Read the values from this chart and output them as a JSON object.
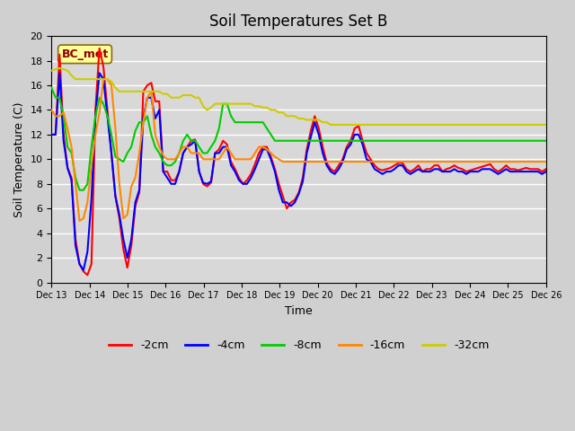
{
  "title": "Soil Temperatures Set B",
  "xlabel": "Time",
  "ylabel": "Soil Temperature (C)",
  "annotation": "BC_met",
  "ylim": [
    0,
    20
  ],
  "series_labels": [
    "-2cm",
    "-4cm",
    "-8cm",
    "-16cm",
    "-32cm"
  ],
  "series_colors": [
    "#ff0000",
    "#0000ff",
    "#00cc00",
    "#ff8800",
    "#cccc00"
  ],
  "background_color": "#e8e8e8",
  "plot_bg_color": "#d8d8d8",
  "x_labels": [
    "Dec 13",
    "Dec 14",
    "Dec 15",
    "Dec 16",
    "Dec 17",
    "Dec 18",
    "Dec 19",
    "Dec 20",
    "Dec 21",
    "Dec 22",
    "Dec 23",
    "Dec 24",
    "Dec 25",
    "Dec 26"
  ],
  "t_2cm": [
    12.0,
    12.0,
    18.5,
    12.0,
    9.3,
    8.5,
    3.5,
    1.5,
    0.9,
    0.6,
    1.5,
    14.0,
    19.0,
    17.5,
    14.0,
    10.5,
    7.0,
    5.2,
    2.7,
    1.2,
    3.0,
    6.2,
    7.3,
    15.5,
    16.0,
    16.2,
    14.7,
    14.7,
    9.0,
    9.0,
    8.3,
    8.3,
    9.0,
    10.5,
    11.0,
    11.5,
    11.6,
    9.0,
    8.0,
    7.8,
    8.1,
    10.5,
    10.8,
    11.5,
    11.2,
    9.8,
    9.2,
    8.5,
    8.0,
    8.3,
    8.8,
    9.6,
    10.5,
    11.0,
    11.0,
    10.2,
    9.2,
    8.0,
    7.0,
    6.0,
    6.5,
    6.7,
    7.3,
    8.5,
    10.8,
    12.3,
    13.5,
    12.5,
    11.0,
    9.7,
    9.2,
    9.0,
    9.5,
    10.0,
    11.0,
    11.5,
    12.5,
    12.7,
    11.5,
    10.5,
    10.0,
    9.5,
    9.2,
    9.1,
    9.2,
    9.3,
    9.5,
    9.7,
    9.7,
    9.2,
    9.0,
    9.2,
    9.5,
    9.0,
    9.2,
    9.2,
    9.5,
    9.5,
    9.0,
    9.2,
    9.3,
    9.5,
    9.3,
    9.2,
    9.0,
    9.1,
    9.2,
    9.3,
    9.4,
    9.5,
    9.6,
    9.2,
    9.0,
    9.2,
    9.5,
    9.2,
    9.2,
    9.1,
    9.2,
    9.3,
    9.2,
    9.2,
    9.2,
    9.0,
    9.2
  ],
  "t_4cm": [
    12.0,
    12.0,
    17.0,
    11.5,
    9.3,
    8.3,
    3.0,
    1.5,
    1.0,
    2.5,
    6.8,
    13.5,
    17.0,
    16.5,
    13.5,
    10.5,
    7.0,
    5.5,
    3.5,
    2.0,
    3.5,
    6.5,
    7.5,
    13.3,
    15.0,
    15.0,
    13.3,
    14.0,
    9.0,
    8.5,
    8.0,
    8.0,
    9.0,
    10.5,
    11.0,
    11.2,
    11.5,
    9.0,
    8.1,
    8.0,
    8.2,
    10.5,
    10.5,
    11.0,
    11.0,
    9.5,
    9.0,
    8.3,
    8.0,
    8.0,
    8.5,
    9.2,
    10.0,
    10.8,
    10.8,
    10.0,
    9.0,
    7.5,
    6.5,
    6.5,
    6.2,
    6.5,
    7.2,
    8.2,
    10.5,
    11.8,
    13.0,
    12.0,
    10.5,
    9.5,
    9.0,
    8.8,
    9.2,
    9.8,
    10.8,
    11.2,
    12.0,
    12.0,
    11.2,
    10.0,
    9.8,
    9.2,
    9.0,
    8.8,
    9.0,
    9.0,
    9.2,
    9.5,
    9.5,
    9.0,
    8.8,
    9.0,
    9.2,
    9.0,
    9.0,
    9.0,
    9.2,
    9.2,
    9.0,
    9.0,
    9.0,
    9.2,
    9.0,
    9.0,
    8.8,
    9.0,
    9.0,
    9.0,
    9.2,
    9.2,
    9.2,
    9.0,
    8.8,
    9.0,
    9.2,
    9.0,
    9.0,
    9.0,
    9.0,
    9.0,
    9.0,
    9.0,
    9.0,
    8.8,
    9.0
  ],
  "t_8cm": [
    15.8,
    15.0,
    15.0,
    13.5,
    11.0,
    10.5,
    8.5,
    7.5,
    7.5,
    8.0,
    11.0,
    13.5,
    15.0,
    14.5,
    13.5,
    12.0,
    10.2,
    10.0,
    9.8,
    10.5,
    11.0,
    12.3,
    13.0,
    13.0,
    13.5,
    12.0,
    11.0,
    10.5,
    9.8,
    9.5,
    9.5,
    9.8,
    10.5,
    11.5,
    12.0,
    11.5,
    11.5,
    11.0,
    10.5,
    10.5,
    11.0,
    11.5,
    12.5,
    14.5,
    14.5,
    13.5,
    13.0,
    13.0,
    13.0,
    13.0,
    13.0,
    13.0,
    13.0,
    13.0,
    12.5,
    12.0,
    11.5,
    11.5,
    11.5,
    11.5,
    11.5,
    11.5,
    11.5,
    11.5,
    11.5,
    11.5,
    11.5,
    11.5,
    11.5,
    11.5,
    11.5,
    11.5,
    11.5,
    11.5,
    11.5,
    11.5,
    11.5,
    11.5,
    11.5,
    11.5,
    11.5,
    11.5,
    11.5,
    11.5,
    11.5,
    11.5,
    11.5,
    11.5,
    11.5,
    11.5,
    11.5,
    11.5,
    11.5,
    11.5,
    11.5,
    11.5,
    11.5,
    11.5,
    11.5,
    11.5,
    11.5,
    11.5,
    11.5,
    11.5,
    11.5,
    11.5,
    11.5,
    11.5,
    11.5,
    11.5,
    11.5,
    11.5,
    11.5,
    11.5,
    11.5,
    11.5,
    11.5,
    11.5,
    11.5,
    11.5,
    11.5,
    11.5,
    11.5,
    11.5,
    11.5
  ],
  "t_16cm": [
    14.0,
    13.5,
    13.5,
    13.8,
    12.5,
    11.0,
    8.0,
    5.0,
    5.2,
    6.5,
    9.5,
    12.0,
    13.8,
    16.5,
    16.5,
    16.0,
    12.5,
    8.0,
    5.2,
    5.5,
    7.8,
    8.5,
    10.5,
    13.0,
    15.0,
    15.5,
    12.0,
    11.0,
    10.3,
    10.0,
    10.0,
    10.0,
    10.5,
    11.0,
    11.0,
    10.5,
    10.5,
    10.5,
    10.0,
    10.0,
    10.0,
    10.0,
    10.0,
    10.5,
    11.0,
    10.5,
    10.0,
    10.0,
    10.0,
    10.0,
    10.0,
    10.5,
    11.0,
    11.0,
    10.8,
    10.5,
    10.2,
    10.0,
    9.8,
    9.8,
    9.8,
    9.8,
    9.8,
    9.8,
    9.8,
    9.8,
    9.8,
    9.8,
    9.8,
    9.8,
    9.8,
    9.8,
    9.8,
    9.8,
    9.8,
    9.8,
    9.8,
    9.8,
    9.8,
    9.8,
    9.8,
    9.8,
    9.8,
    9.8,
    9.8,
    9.8,
    9.8,
    9.8,
    9.8,
    9.8,
    9.8,
    9.8,
    9.8,
    9.8,
    9.8,
    9.8,
    9.8,
    9.8,
    9.8,
    9.8,
    9.8,
    9.8,
    9.8,
    9.8,
    9.8,
    9.8,
    9.8,
    9.8,
    9.8,
    9.8,
    9.8,
    9.8,
    9.8,
    9.8,
    9.8,
    9.8,
    9.8,
    9.8,
    9.8,
    9.8,
    9.8,
    9.8,
    9.8,
    9.8,
    9.8
  ],
  "t_32cm": [
    17.2,
    17.3,
    17.4,
    17.3,
    17.2,
    16.8,
    16.5,
    16.5,
    16.5,
    16.5,
    16.5,
    16.5,
    16.5,
    16.5,
    16.5,
    16.3,
    15.8,
    15.5,
    15.5,
    15.5,
    15.5,
    15.5,
    15.5,
    15.5,
    15.5,
    15.5,
    15.5,
    15.5,
    15.3,
    15.3,
    15.0,
    15.0,
    15.0,
    15.2,
    15.2,
    15.2,
    15.0,
    15.0,
    14.3,
    14.0,
    14.2,
    14.5,
    14.5,
    14.5,
    14.5,
    14.5,
    14.5,
    14.5,
    14.5,
    14.5,
    14.5,
    14.3,
    14.3,
    14.2,
    14.2,
    14.0,
    14.0,
    13.8,
    13.8,
    13.5,
    13.5,
    13.5,
    13.3,
    13.3,
    13.2,
    13.2,
    13.2,
    13.2,
    13.0,
    13.0,
    12.8,
    12.8,
    12.8,
    12.8,
    12.8,
    12.8,
    12.8,
    12.8,
    12.8,
    12.8,
    12.8,
    12.8,
    12.8,
    12.8,
    12.8,
    12.8,
    12.8,
    12.8,
    12.8,
    12.8,
    12.8,
    12.8,
    12.8,
    12.8,
    12.8,
    12.8,
    12.8,
    12.8,
    12.8,
    12.8,
    12.8,
    12.8,
    12.8,
    12.8,
    12.8,
    12.8,
    12.8,
    12.8,
    12.8,
    12.8,
    12.8,
    12.8,
    12.8,
    12.8,
    12.8,
    12.8,
    12.8,
    12.8,
    12.8,
    12.8,
    12.8,
    12.8,
    12.8,
    12.8,
    12.8
  ]
}
